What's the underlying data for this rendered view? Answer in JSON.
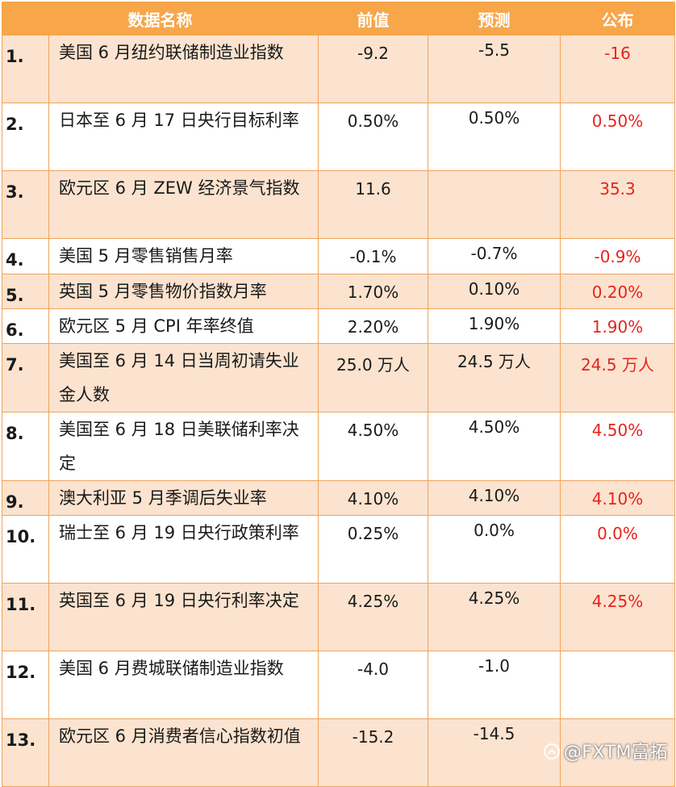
{
  "header": {
    "name": "数据名称",
    "prev": "前值",
    "forecast": "预测",
    "published": "公布"
  },
  "rows": [
    {
      "no": "1.",
      "name": "美国 6 月纽约联储制造业指数",
      "prev": "-9.2",
      "forecast": "-5.5",
      "published": "-16"
    },
    {
      "no": "2.",
      "name": "日本至 6 月 17 日央行目标利率",
      "prev": "0.50%",
      "forecast": "0.50%",
      "published": "0.50%"
    },
    {
      "no": "3.",
      "name": "欧元区 6 月 ZEW 经济景气指数",
      "prev": "11.6",
      "forecast": "",
      "published": "35.3"
    },
    {
      "no": "4.",
      "name": "美国 5 月零售销售月率",
      "prev": "-0.1%",
      "forecast": "-0.7%",
      "published": "-0.9%"
    },
    {
      "no": "5.",
      "name": "英国 5 月零售物价指数月率",
      "prev": "1.70%",
      "forecast": "0.10%",
      "published": "0.20%"
    },
    {
      "no": "6.",
      "name": "欧元区 5 月 CPI 年率终值",
      "prev": "2.20%",
      "forecast": "1.90%",
      "published": "1.90%"
    },
    {
      "no": "7.",
      "name": "美国至 6 月 14 日当周初请失业金人数",
      "prev": "25.0 万人",
      "forecast": "24.5 万人",
      "published": "24.5 万人"
    },
    {
      "no": "8.",
      "name": "美国至 6 月 18 日美联储利率决定",
      "prev": "4.50%",
      "forecast": "4.50%",
      "published": "4.50%"
    },
    {
      "no": "9.",
      "name": "澳大利亚 5 月季调后失业率",
      "prev": "4.10%",
      "forecast": "4.10%",
      "published": "4.10%"
    },
    {
      "no": "10.",
      "name": "瑞士至 6 月 19 日央行政策利率",
      "prev": "0.25%",
      "forecast": "0.0%",
      "published": "0.0%"
    },
    {
      "no": "11.",
      "name": "英国至 6 月 19 日央行利率决定",
      "prev": "4.25%",
      "forecast": "4.25%",
      "published": "4.25%"
    },
    {
      "no": "12.",
      "name": "美国 6 月费城联储制造业指数",
      "prev": "-4.0",
      "forecast": "-1.0",
      "published": ""
    },
    {
      "no": "13.",
      "name": "欧元区 6 月消费者信心指数初值",
      "prev": "-15.2",
      "forecast": "-14.5",
      "published": ""
    }
  ],
  "watermark": "@FXTM富拓",
  "colors": {
    "header_bg": "#f7a64a",
    "shade_row_bg": "#fbe3cf",
    "published_text": "#e8231e"
  }
}
